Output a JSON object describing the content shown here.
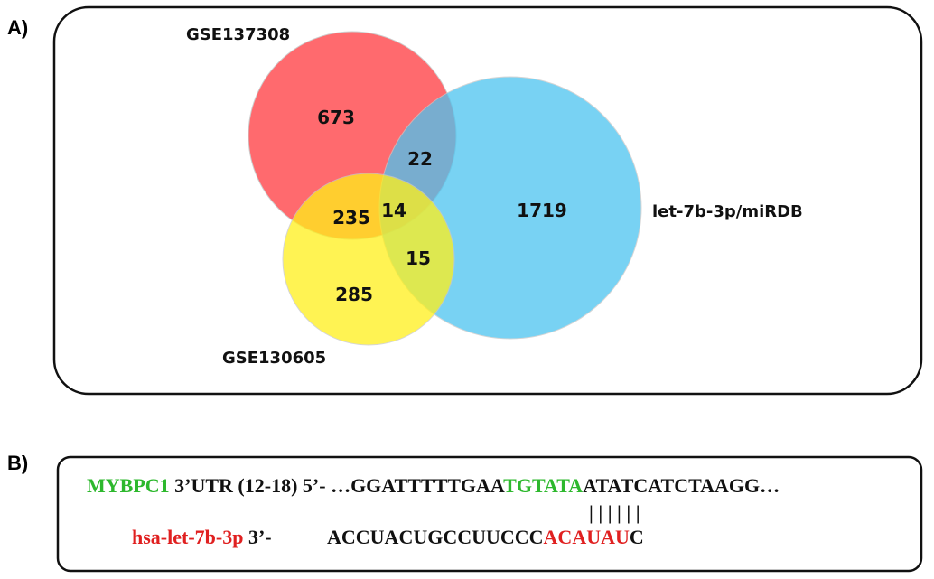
{
  "panel_a": {
    "letter": "A)",
    "sets": [
      {
        "id": "gse137308",
        "label": "GSE137308",
        "color": "#ff5a5f"
      },
      {
        "id": "gse130605",
        "label": "GSE130605",
        "color": "#fff01a"
      },
      {
        "id": "mirdb",
        "label": "let-7b-3p/miRDB",
        "color": "#4cc4f0"
      }
    ],
    "regions": {
      "gse137308_only": "673",
      "gse137308_mirdb": "22",
      "gse137308_gse130605": "235",
      "all_three": "14",
      "mirdb_only": "1719",
      "gse130605_mirdb": "15",
      "gse130605_only": "285"
    }
  },
  "panel_b": {
    "letter": "B)",
    "gene": {
      "name": "MYBPC1",
      "color": "#2db82d"
    },
    "utr_text": " 3’UTR (12-18) 5’- ",
    "target_seq": {
      "before": "…GGATTTTTGAA",
      "match": "TGTATA",
      "after": "ATATCATCTAAGG…"
    },
    "mirna": {
      "name": "hsa-let-7b-3p",
      "color": "#e02020"
    },
    "mirna_dir": " 3’-",
    "mirna_seq": {
      "before": "ACCUACUGCCUUCCC",
      "match": "ACAUAU",
      "after": "C"
    },
    "pairing": "| | | | | |"
  }
}
